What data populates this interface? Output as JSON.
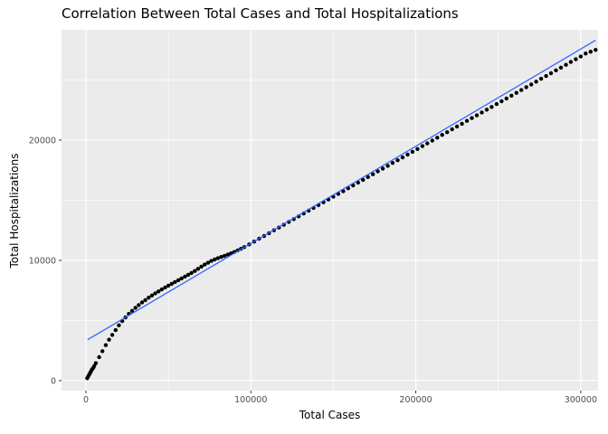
{
  "figure": {
    "background": "#ffffff",
    "panel_background": "#EBEBEB",
    "grid_color": "#FFFFFF",
    "point_color": "#000000",
    "tick_mark_color": "#333333",
    "tick_label_color": "#4D4D4D",
    "axis_title_color": "#000000"
  },
  "chart_data": {
    "type": "scatter",
    "title": "Correlation Between Total Cases and Total Hospitalizations",
    "xlabel": "Total Cases",
    "ylabel": "Total Hospitalizations",
    "grid": true,
    "legend": false,
    "xlim": [
      -14800,
      310500
    ],
    "ylim": [
      -830,
      29170
    ],
    "x_ticks": [
      0,
      100000,
      200000,
      300000
    ],
    "x_tick_labels": [
      "0",
      "100000",
      "200000",
      "300000"
    ],
    "x_minor_ticks": [
      50000,
      150000,
      250000
    ],
    "y_ticks": [
      0,
      10000,
      20000
    ],
    "y_tick_labels": [
      "0",
      "10000",
      "20000"
    ],
    "y_minor_ticks": [
      5000,
      15000,
      25000
    ],
    "trend_line": {
      "x1": 1000,
      "y1": 3400,
      "x2": 309000,
      "y2": 28300,
      "color": "#3366FF"
    },
    "points": [
      [
        800,
        200
      ],
      [
        1400,
        350
      ],
      [
        2000,
        500
      ],
      [
        2600,
        650
      ],
      [
        3200,
        800
      ],
      [
        3800,
        950
      ],
      [
        4400,
        1050
      ],
      [
        5000,
        1200
      ],
      [
        6000,
        1450
      ],
      [
        8000,
        1950
      ],
      [
        10000,
        2450
      ],
      [
        12000,
        2950
      ],
      [
        14000,
        3400
      ],
      [
        16000,
        3800
      ],
      [
        18000,
        4200
      ],
      [
        20000,
        4600
      ],
      [
        22000,
        4950
      ],
      [
        24000,
        5250
      ],
      [
        26000,
        5550
      ],
      [
        28000,
        5800
      ],
      [
        30000,
        6050
      ],
      [
        32000,
        6280
      ],
      [
        34000,
        6500
      ],
      [
        36000,
        6700
      ],
      [
        38000,
        6900
      ],
      [
        40000,
        7080
      ],
      [
        42000,
        7250
      ],
      [
        44000,
        7420
      ],
      [
        46000,
        7580
      ],
      [
        48000,
        7740
      ],
      [
        50000,
        7900
      ],
      [
        52000,
        8050
      ],
      [
        54000,
        8200
      ],
      [
        56000,
        8350
      ],
      [
        58000,
        8500
      ],
      [
        60000,
        8650
      ],
      [
        62000,
        8800
      ],
      [
        64000,
        8950
      ],
      [
        66000,
        9120
      ],
      [
        68000,
        9300
      ],
      [
        70000,
        9480
      ],
      [
        72000,
        9650
      ],
      [
        74000,
        9800
      ],
      [
        76000,
        9950
      ],
      [
        78000,
        10070
      ],
      [
        80000,
        10180
      ],
      [
        82000,
        10280
      ],
      [
        84000,
        10380
      ],
      [
        86000,
        10480
      ],
      [
        88000,
        10580
      ],
      [
        90000,
        10700
      ],
      [
        92000,
        10830
      ],
      [
        94000,
        10960
      ],
      [
        96000,
        11100
      ],
      [
        99000,
        11330
      ],
      [
        102000,
        11560
      ],
      [
        105000,
        11800
      ],
      [
        108000,
        12030
      ],
      [
        111000,
        12260
      ],
      [
        114000,
        12500
      ],
      [
        117000,
        12730
      ],
      [
        120000,
        12960
      ],
      [
        123000,
        13200
      ],
      [
        126000,
        13430
      ],
      [
        129000,
        13660
      ],
      [
        132000,
        13900
      ],
      [
        135000,
        14130
      ],
      [
        138000,
        14360
      ],
      [
        141000,
        14600
      ],
      [
        144000,
        14830
      ],
      [
        147000,
        15060
      ],
      [
        150000,
        15300
      ],
      [
        153000,
        15530
      ],
      [
        156000,
        15760
      ],
      [
        159000,
        16000
      ],
      [
        162000,
        16230
      ],
      [
        165000,
        16460
      ],
      [
        168000,
        16700
      ],
      [
        171000,
        16930
      ],
      [
        174000,
        17160
      ],
      [
        177000,
        17400
      ],
      [
        180000,
        17630
      ],
      [
        183000,
        17860
      ],
      [
        186000,
        18100
      ],
      [
        189000,
        18330
      ],
      [
        192000,
        18560
      ],
      [
        195000,
        18800
      ],
      [
        198000,
        19030
      ],
      [
        201000,
        19260
      ],
      [
        204000,
        19500
      ],
      [
        207000,
        19730
      ],
      [
        210000,
        19960
      ],
      [
        213000,
        20200
      ],
      [
        216000,
        20430
      ],
      [
        219000,
        20660
      ],
      [
        222000,
        20900
      ],
      [
        225000,
        21130
      ],
      [
        228000,
        21360
      ],
      [
        231000,
        21600
      ],
      [
        234000,
        21830
      ],
      [
        237000,
        22060
      ],
      [
        240000,
        22300
      ],
      [
        243000,
        22530
      ],
      [
        246000,
        22760
      ],
      [
        249000,
        23000
      ],
      [
        252000,
        23230
      ],
      [
        255000,
        23460
      ],
      [
        258000,
        23700
      ],
      [
        261000,
        23930
      ],
      [
        264000,
        24160
      ],
      [
        267000,
        24400
      ],
      [
        270000,
        24630
      ],
      [
        273000,
        24860
      ],
      [
        276000,
        25100
      ],
      [
        279000,
        25330
      ],
      [
        282000,
        25560
      ],
      [
        285000,
        25800
      ],
      [
        288000,
        26030
      ],
      [
        291000,
        26260
      ],
      [
        294000,
        26500
      ],
      [
        297000,
        26730
      ],
      [
        300000,
        26960
      ],
      [
        303000,
        27200
      ],
      [
        306000,
        27350
      ],
      [
        309000,
        27500
      ]
    ]
  }
}
